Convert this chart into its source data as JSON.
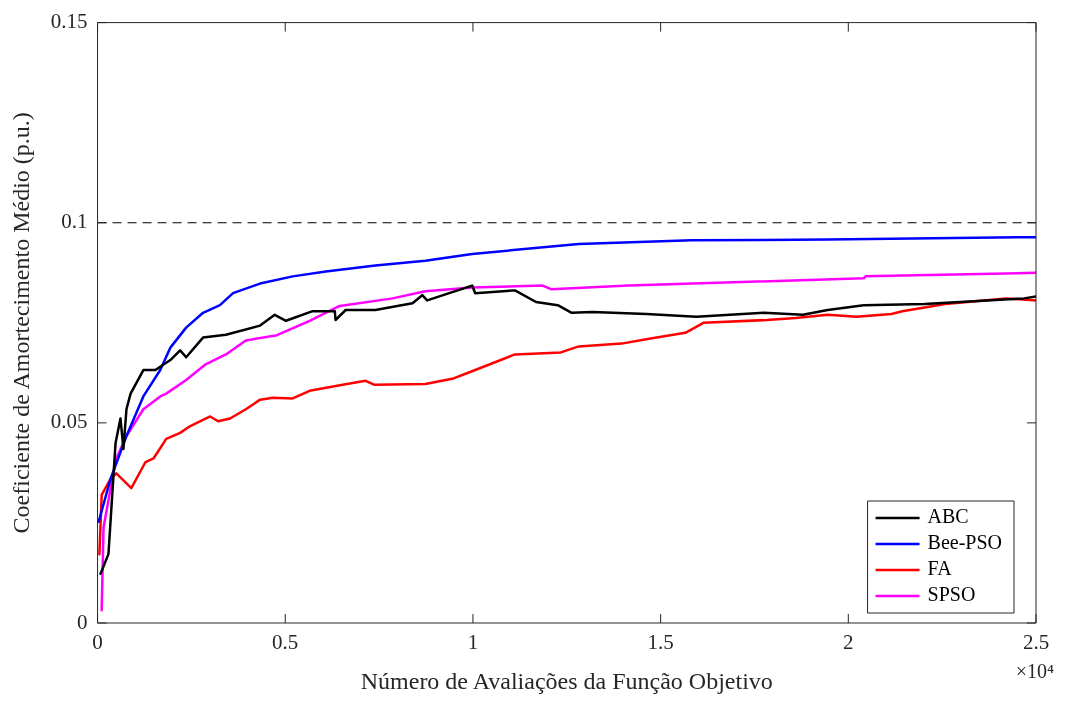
{
  "chart_data": {
    "type": "line",
    "xlabel": "Número de Avaliações da Função Objetivo",
    "ylabel": "Coeficiente de Amortecimento Médio (p.u.)",
    "xlim": [
      0,
      2.5
    ],
    "xticks": [
      0,
      0.5,
      1,
      1.5,
      2,
      2.5
    ],
    "ylim": [
      0,
      0.15
    ],
    "yticks": [
      0,
      0.05,
      0.1,
      0.15
    ],
    "grid": false,
    "legend": "bottom right",
    "marker": "none",
    "line_style": "solid",
    "annotations": [
      "×10⁴"
    ],
    "ref_lines": [
      {
        "axis": "y",
        "value": 0.1,
        "color": "#000000",
        "line_style": "dashed"
      }
    ],
    "series": [
      {
        "name": "ABC",
        "color": "#000000",
        "x": [
          0.008,
          0.029,
          0.048,
          0.061,
          0.069,
          0.077,
          0.088,
          0.122,
          0.154,
          0.194,
          0.22,
          0.236,
          0.281,
          0.342,
          0.433,
          0.472,
          0.502,
          0.573,
          0.632,
          0.634,
          0.661,
          0.74,
          0.839,
          0.865,
          0.878,
          0.998,
          1.006,
          1.112,
          1.168,
          1.226,
          1.263,
          1.319,
          1.462,
          1.595,
          1.775,
          1.879,
          1.945,
          2.041,
          2.203,
          2.468,
          2.5
        ],
        "values": [
          0.0123,
          0.0172,
          0.045,
          0.0511,
          0.0435,
          0.0534,
          0.0573,
          0.0632,
          0.0632,
          0.0657,
          0.0681,
          0.0664,
          0.0713,
          0.072,
          0.0743,
          0.077,
          0.0755,
          0.0779,
          0.0779,
          0.0757,
          0.0782,
          0.0782,
          0.0799,
          0.0819,
          0.0806,
          0.0843,
          0.0824,
          0.0831,
          0.0802,
          0.0794,
          0.0775,
          0.0777,
          0.0772,
          0.0765,
          0.0775,
          0.077,
          0.0782,
          0.0794,
          0.0797,
          0.0811,
          0.0816
        ]
      },
      {
        "name": "Bee-PSO",
        "color": "#0000ff",
        "x": [
          0.003,
          0.035,
          0.077,
          0.122,
          0.167,
          0.194,
          0.236,
          0.281,
          0.326,
          0.361,
          0.433,
          0.52,
          0.608,
          0.74,
          0.873,
          0.998,
          1.282,
          1.582,
          1.945,
          2.5
        ],
        "values": [
          0.0253,
          0.0361,
          0.0467,
          0.0566,
          0.0632,
          0.0688,
          0.0738,
          0.0775,
          0.0794,
          0.0824,
          0.0848,
          0.0866,
          0.0878,
          0.0893,
          0.0905,
          0.0922,
          0.0947,
          0.0956,
          0.0958,
          0.0964
        ]
      },
      {
        "name": "FA",
        "color": "#ff0000",
        "x": [
          0.005,
          0.011,
          0.035,
          0.05,
          0.09,
          0.127,
          0.149,
          0.183,
          0.22,
          0.247,
          0.3,
          0.321,
          0.353,
          0.395,
          0.433,
          0.467,
          0.52,
          0.565,
          0.653,
          0.714,
          0.738,
          0.873,
          0.945,
          1.006,
          1.112,
          1.234,
          1.282,
          1.396,
          1.473,
          1.566,
          1.614,
          1.783,
          1.86,
          1.945,
          2.022,
          2.115,
          2.144,
          2.258,
          2.42,
          2.5
        ],
        "values": [
          0.0172,
          0.032,
          0.0361,
          0.0374,
          0.0337,
          0.0401,
          0.0411,
          0.046,
          0.0475,
          0.0492,
          0.0516,
          0.0504,
          0.0511,
          0.0534,
          0.0558,
          0.0563,
          0.0561,
          0.058,
          0.0595,
          0.0605,
          0.0595,
          0.0597,
          0.061,
          0.0632,
          0.0671,
          0.0676,
          0.0691,
          0.0698,
          0.0711,
          0.0725,
          0.075,
          0.0757,
          0.0762,
          0.077,
          0.0765,
          0.0772,
          0.0779,
          0.0797,
          0.0811,
          0.0806
        ]
      },
      {
        "name": "SPSO",
        "color": "#ff00ff",
        "x": [
          0.011,
          0.016,
          0.035,
          0.05,
          0.077,
          0.122,
          0.167,
          0.183,
          0.236,
          0.289,
          0.342,
          0.395,
          0.475,
          0.565,
          0.645,
          0.786,
          0.873,
          0.998,
          1.186,
          1.208,
          1.415,
          1.757,
          2.041,
          2.046,
          2.5
        ],
        "values": [
          0.0032,
          0.0239,
          0.0337,
          0.0411,
          0.0467,
          0.0534,
          0.0566,
          0.0573,
          0.0607,
          0.0647,
          0.0671,
          0.0706,
          0.0718,
          0.0755,
          0.0792,
          0.0811,
          0.0829,
          0.0838,
          0.0843,
          0.0834,
          0.0843,
          0.0853,
          0.0861,
          0.0866,
          0.0875
        ]
      }
    ]
  }
}
